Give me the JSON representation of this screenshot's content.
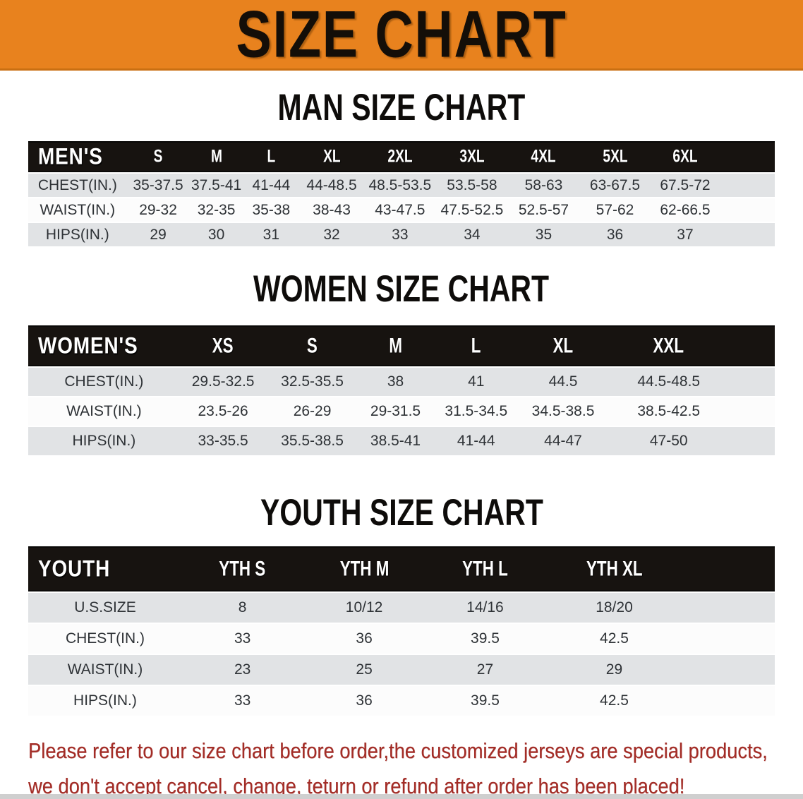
{
  "banner": {
    "title": "SIZE CHART"
  },
  "sections": [
    {
      "key": "men",
      "title": "MAN SIZE CHART",
      "label": "MEN'S",
      "columns": [
        "S",
        "M",
        "L",
        "XL",
        "2XL",
        "3XL",
        "4XL",
        "5XL",
        "6XL"
      ],
      "rows": [
        {
          "label": "CHEST(IN.)",
          "values": [
            "35-37.5",
            "37.5-41",
            "41-44",
            "44-48.5",
            "48.5-53.5",
            "53.5-58",
            "58-63",
            "63-67.5",
            "67.5-72"
          ]
        },
        {
          "label": "WAIST(IN.)",
          "values": [
            "29-32",
            "32-35",
            "35-38",
            "38-43",
            "43-47.5",
            "47.5-52.5",
            "52.5-57",
            "57-62",
            "62-66.5"
          ]
        },
        {
          "label": "HIPS(IN.)",
          "values": [
            "29",
            "30",
            "31",
            "32",
            "33",
            "34",
            "35",
            "36",
            "37"
          ]
        }
      ]
    },
    {
      "key": "women",
      "title": "WOMEN SIZE CHART",
      "label": "WOMEN'S",
      "columns": [
        "XS",
        "S",
        "M",
        "L",
        "XL",
        "XXL"
      ],
      "rows": [
        {
          "label": "CHEST(IN.)",
          "values": [
            "29.5-32.5",
            "32.5-35.5",
            "38",
            "41",
            "44.5",
            "44.5-48.5"
          ]
        },
        {
          "label": "WAIST(IN.)",
          "values": [
            "23.5-26",
            "26-29",
            "29-31.5",
            "31.5-34.5",
            "34.5-38.5",
            "38.5-42.5"
          ]
        },
        {
          "label": "HIPS(IN.)",
          "values": [
            "33-35.5",
            "35.5-38.5",
            "38.5-41",
            "41-44",
            "44-47",
            "47-50"
          ]
        }
      ]
    },
    {
      "key": "youth",
      "title": "YOUTH SIZE CHART",
      "label": "YOUTH",
      "columns": [
        "YTH S",
        "YTH M",
        "YTH L",
        "YTH XL"
      ],
      "rows": [
        {
          "label": "U.S.SIZE",
          "values": [
            "8",
            "10/12",
            "14/16",
            "18/20"
          ]
        },
        {
          "label": "CHEST(IN.)",
          "values": [
            "33",
            "36",
            "39.5",
            "42.5"
          ]
        },
        {
          "label": "WAIST(IN.)",
          "values": [
            "23",
            "25",
            "27",
            "29"
          ]
        },
        {
          "label": "HIPS(IN.)",
          "values": [
            "33",
            "36",
            "39.5",
            "42.5"
          ]
        }
      ]
    }
  ],
  "disclaimer": {
    "line1": "Please refer to our size chart before order,the customized jerseys are special products,",
    "line2": "we don't accept cancel, change, teturn or refund after order has been placed!"
  },
  "colors": {
    "banner_bg": "#e8821e",
    "header_band": "#171310",
    "row_gray": "#e1e3e5",
    "row_white": "#fcfcfc",
    "disclaimer_red": "#a32c26"
  }
}
